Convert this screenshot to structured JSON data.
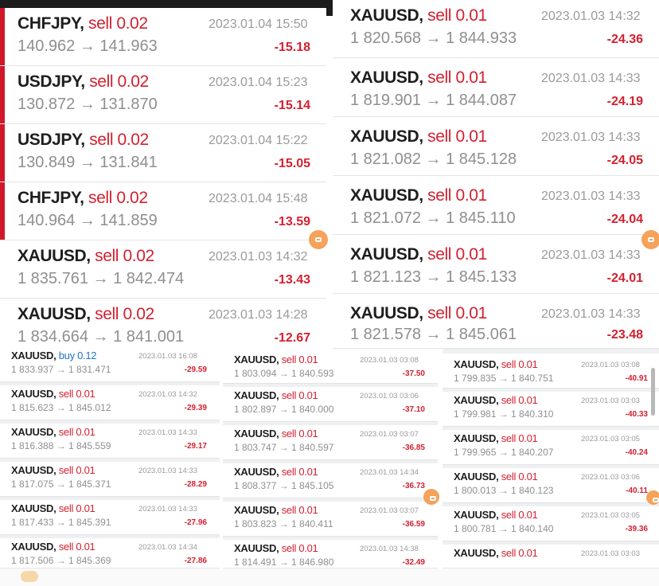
{
  "panels": [
    {
      "id": "p1",
      "rows": [
        {
          "symbol": "CHFJPY,",
          "action": "sell 0.02",
          "side": "sell",
          "prices": "140.962 → 141.963",
          "datetime": "2023.01.04 15:50",
          "pl": "-15.18"
        },
        {
          "symbol": "USDJPY,",
          "action": "sell 0.02",
          "side": "sell",
          "prices": "130.872 → 131.870",
          "datetime": "2023.01.04 15:23",
          "pl": "-15.14"
        },
        {
          "symbol": "USDJPY,",
          "action": "sell 0.02",
          "side": "sell",
          "prices": "130.849 → 131.841",
          "datetime": "2023.01.04 15:22",
          "pl": "-15.05"
        },
        {
          "symbol": "CHFJPY,",
          "action": "sell 0.02",
          "side": "sell",
          "prices": "140.964 → 141.859",
          "datetime": "2023.01.04 15:48",
          "pl": "-13.59"
        },
        {
          "symbol": "XAUUSD,",
          "action": "sell 0.02",
          "side": "sell",
          "prices": "1 835.761 → 1 842.474",
          "datetime": "2023.01.03 14:32",
          "pl": "-13.43"
        },
        {
          "symbol": "XAUUSD,",
          "action": "sell 0.02",
          "side": "sell",
          "prices": "1 834.664 → 1 841.001",
          "datetime": "2023.01.03 14:28",
          "pl": "-12.67"
        }
      ]
    },
    {
      "id": "p2",
      "rows": [
        {
          "symbol": "XAUUSD,",
          "action": "sell 0.01",
          "side": "sell",
          "prices": "1 820.568 → 1 844.933",
          "datetime": "2023.01.03 14:32",
          "pl": "-24.36"
        },
        {
          "symbol": "XAUUSD,",
          "action": "sell 0.01",
          "side": "sell",
          "prices": "1 819.901 → 1 844.087",
          "datetime": "2023.01.03 14:33",
          "pl": "-24.19"
        },
        {
          "symbol": "XAUUSD,",
          "action": "sell 0.01",
          "side": "sell",
          "prices": "1 821.082 → 1 845.128",
          "datetime": "2023.01.03 14:33",
          "pl": "-24.05"
        },
        {
          "symbol": "XAUUSD,",
          "action": "sell 0.01",
          "side": "sell",
          "prices": "1 821.072 → 1 845.110",
          "datetime": "2023.01.03 14:33",
          "pl": "-24.04"
        },
        {
          "symbol": "XAUUSD,",
          "action": "sell 0.01",
          "side": "sell",
          "prices": "1 821.123 → 1 845.133",
          "datetime": "2023.01.03 14:33",
          "pl": "-24.01"
        },
        {
          "symbol": "XAUUSD,",
          "action": "sell 0.01",
          "side": "sell",
          "prices": "1 821.578 → 1 845.061",
          "datetime": "2023.01.03 14:33",
          "pl": "-23.48"
        }
      ]
    },
    {
      "id": "p3",
      "rows": [
        {
          "symbol": "XAUUSD,",
          "action": "buy 0.12",
          "side": "buy",
          "prices": "1 833.937 → 1 831.471",
          "datetime": "2023.01.03 16:08",
          "pl": "-29.59"
        },
        {
          "symbol": "XAUUSD,",
          "action": "sell 0.01",
          "side": "sell",
          "prices": "1 815.623 → 1 845.012",
          "datetime": "2023.01.03 14:32",
          "pl": "-29.39"
        },
        {
          "symbol": "XAUUSD,",
          "action": "sell 0.01",
          "side": "sell",
          "prices": "1 816.388 → 1 845.559",
          "datetime": "2023.01.03 14:33",
          "pl": "-29.17"
        },
        {
          "symbol": "XAUUSD,",
          "action": "sell 0.01",
          "side": "sell",
          "prices": "1 817.075 → 1 845.371",
          "datetime": "2023.01.03 14:33",
          "pl": "-28.29"
        },
        {
          "symbol": "XAUUSD,",
          "action": "sell 0.01",
          "side": "sell",
          "prices": "1 817.433 → 1 845.391",
          "datetime": "2023.01.03 14:33",
          "pl": "-27.96"
        },
        {
          "symbol": "XAUUSD,",
          "action": "sell 0.01",
          "side": "sell",
          "prices": "1 817.506 → 1 845.369",
          "datetime": "2023.01.03 14:34",
          "pl": "-27.86"
        }
      ]
    },
    {
      "id": "p4",
      "rows": [
        {
          "symbol": "XAUUSD,",
          "action": "sell 0.01",
          "side": "sell",
          "prices": "1 803.094 → 1 840.593",
          "datetime": "2023.01.03 03:08",
          "pl": "-37.50"
        },
        {
          "symbol": "XAUUSD,",
          "action": "sell 0.01",
          "side": "sell",
          "prices": "1 802.897 → 1 840.000",
          "datetime": "2023.01.03 03:06",
          "pl": "-37.10"
        },
        {
          "symbol": "XAUUSD,",
          "action": "sell 0.01",
          "side": "sell",
          "prices": "1 803.747 → 1 840.597",
          "datetime": "2023.01.03 03:07",
          "pl": "-36.85"
        },
        {
          "symbol": "XAUUSD,",
          "action": "sell 0.01",
          "side": "sell",
          "prices": "1 808.377 → 1 845.105",
          "datetime": "2023.01.03 14:34",
          "pl": "-36.73"
        },
        {
          "symbol": "XAUUSD,",
          "action": "sell 0.01",
          "side": "sell",
          "prices": "1 803.823 → 1 840.411",
          "datetime": "2023.01.03 03:07",
          "pl": "-36.59"
        },
        {
          "symbol": "XAUUSD,",
          "action": "sell 0.01",
          "side": "sell",
          "prices": "1 814.491 → 1 846.980",
          "datetime": "2023.01.03 14:38",
          "pl": "-32.49"
        }
      ]
    },
    {
      "id": "p5",
      "rows": [
        {
          "symbol": "XAUUSD,",
          "action": "sell 0.01",
          "side": "sell",
          "prices": "1 799.835 → 1 840.751",
          "datetime": "2023.01.03 03:08",
          "pl": "-40.91"
        },
        {
          "symbol": "XAUUSD,",
          "action": "sell 0.01",
          "side": "sell",
          "prices": "1 799.981 → 1 840.310",
          "datetime": "2023.01.03 03:03",
          "pl": "-40.33"
        },
        {
          "symbol": "XAUUSD,",
          "action": "sell 0.01",
          "side": "sell",
          "prices": "1 799.965 → 1 840.207",
          "datetime": "2023.01.03 03:05",
          "pl": "-40.24"
        },
        {
          "symbol": "XAUUSD,",
          "action": "sell 0.01",
          "side": "sell",
          "prices": "1 800.013 → 1 840.123",
          "datetime": "2023.01.03 03:06",
          "pl": "-40.11"
        },
        {
          "symbol": "XAUUSD,",
          "action": "sell 0.01",
          "side": "sell",
          "prices": "1 800.781 → 1 840.140",
          "datetime": "2023.01.03 03:05",
          "pl": "-39.36"
        },
        {
          "symbol": "XAUUSD,",
          "action": "sell 0.01",
          "side": "sell",
          "prices": "",
          "datetime": "2023.01.03 03:03",
          "pl": ""
        }
      ]
    }
  ],
  "colors": {
    "loss": "#d3202f",
    "sell": "#d3202f",
    "buy": "#1f73c8",
    "accent": "#d0182a",
    "fab": "#f5a25a"
  },
  "icons": {
    "floating_button": "edit-icon",
    "scroll": "scrollbar-thumb"
  }
}
